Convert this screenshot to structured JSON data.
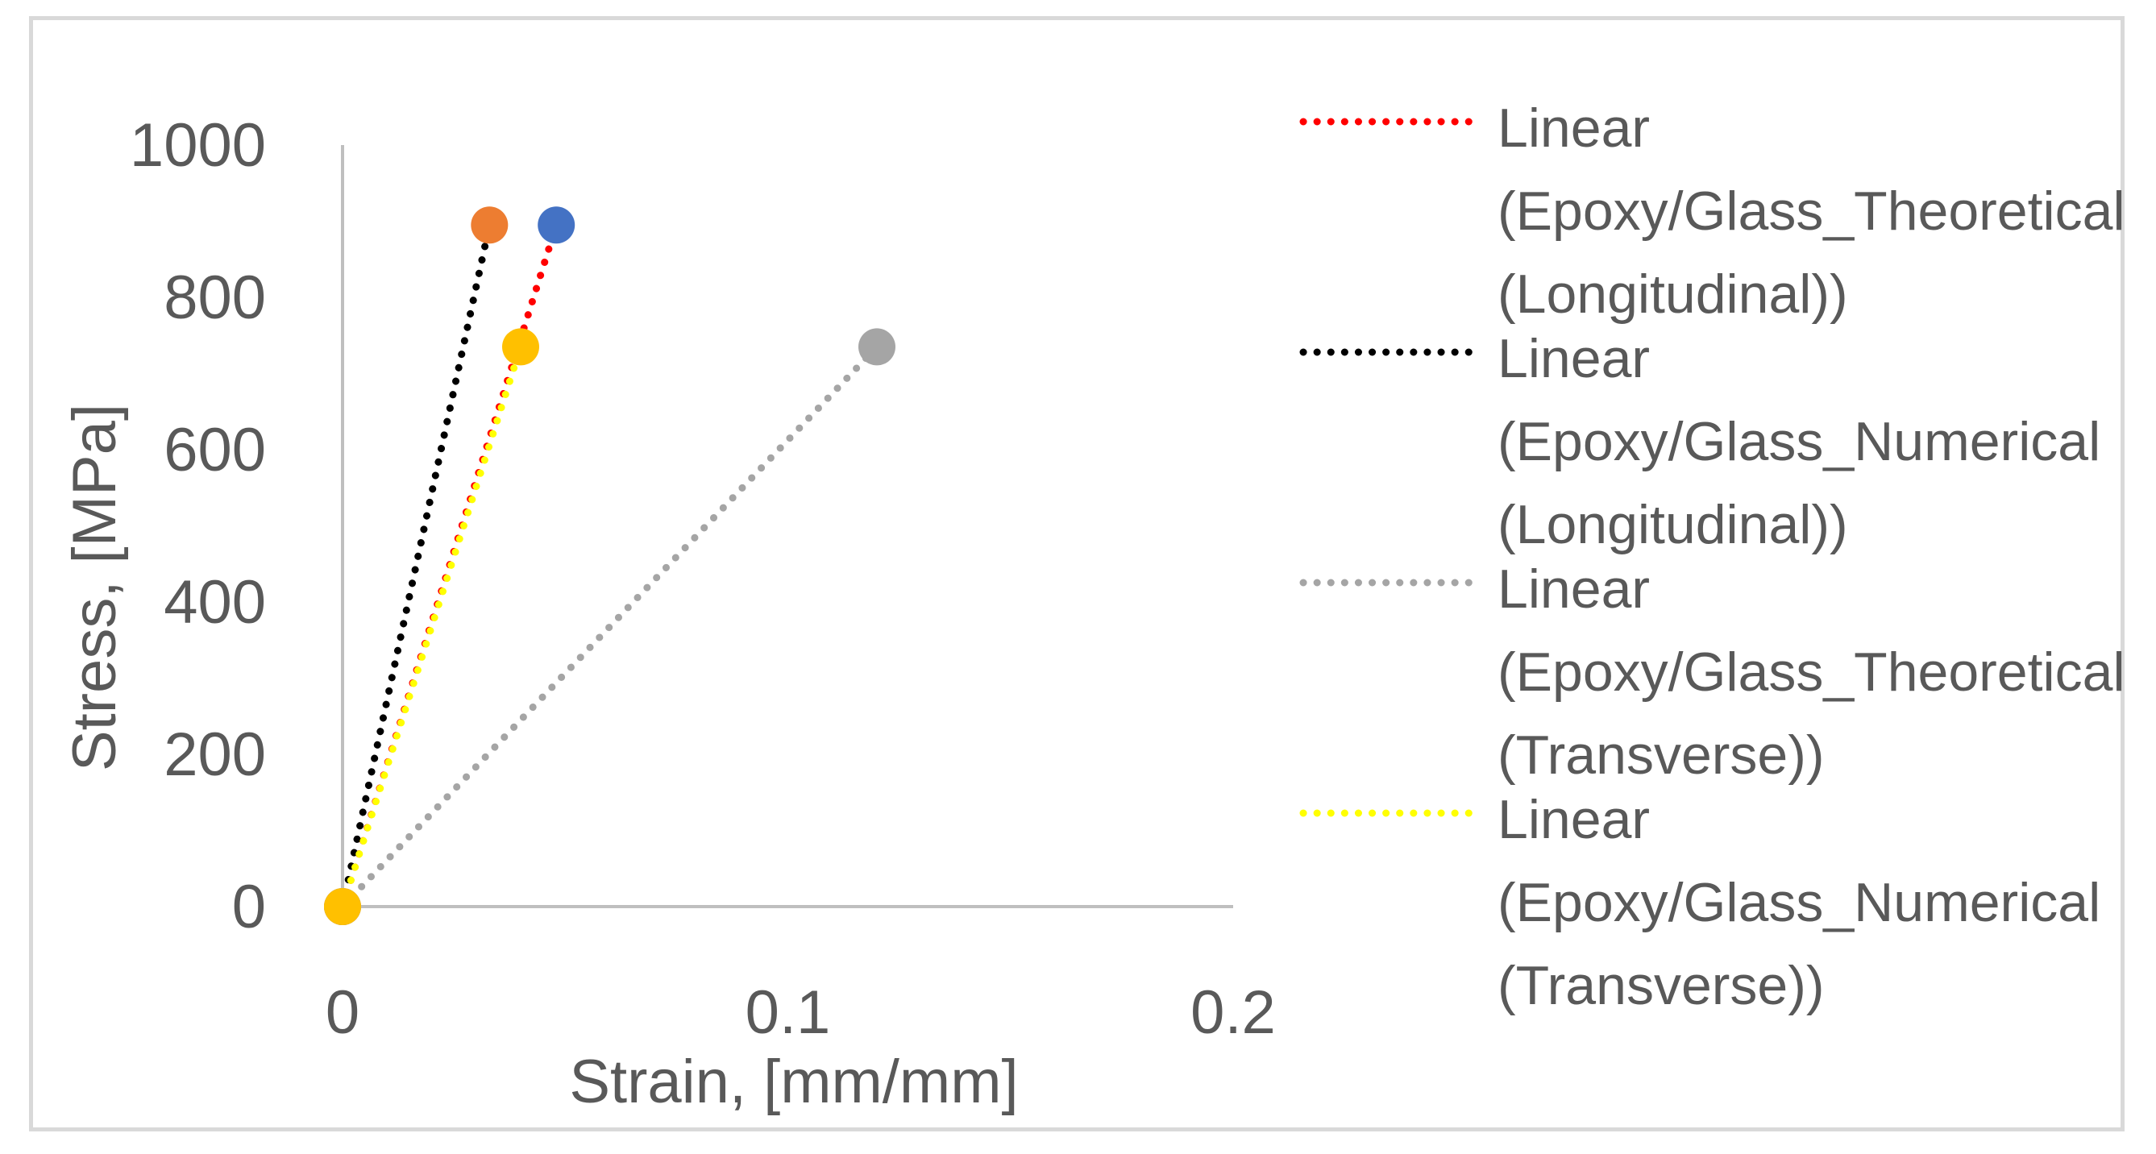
{
  "chart_data": {
    "type": "scatter",
    "title": "",
    "xlabel": "Strain, [mm/mm]",
    "ylabel": "Stress, [MPa]",
    "xlim": [
      0,
      0.2
    ],
    "ylim": [
      0,
      1000
    ],
    "xticks": [
      "0",
      "0.1",
      "0.2"
    ],
    "yticks": [
      "0",
      "200",
      "400",
      "600",
      "800",
      "1000"
    ],
    "grid": false,
    "legend_position": "right",
    "series": [
      {
        "name": "Epoxy/Glass_Theoretical (Longitudinal)",
        "marker_color": "#4472c4",
        "trend_color": "#ff0000",
        "points": [
          {
            "x": 0,
            "y": 0
          },
          {
            "x": 0.048,
            "y": 895
          }
        ]
      },
      {
        "name": "Epoxy/Glass_Numerical (Longitudinal)",
        "marker_color": "#ed7d31",
        "trend_color": "#000000",
        "points": [
          {
            "x": 0,
            "y": 0
          },
          {
            "x": 0.033,
            "y": 895
          }
        ]
      },
      {
        "name": "Epoxy/Glass_Theoretical (Transverse)",
        "marker_color": "#a5a5a5",
        "trend_color": "#a5a5a5",
        "points": [
          {
            "x": 0,
            "y": 0
          },
          {
            "x": 0.12,
            "y": 735
          }
        ]
      },
      {
        "name": "Epoxy/Glass_Numerical (Transverse)",
        "marker_color": "#ffc000",
        "trend_color": "#ffff00",
        "points": [
          {
            "x": 0,
            "y": 0
          },
          {
            "x": 0.04,
            "y": 735
          }
        ]
      }
    ],
    "legend": [
      {
        "label": "Linear (Epoxy/Glass_Theoretical (Longitudinal))",
        "color": "#ff0000"
      },
      {
        "label": "Linear (Epoxy/Glass_Numerical (Longitudinal))",
        "color": "#000000"
      },
      {
        "label": "Linear (Epoxy/Glass_Theoretical (Transverse))",
        "color": "#a5a5a5"
      },
      {
        "label": "Linear (Epoxy/Glass_Numerical (Transverse))",
        "color": "#ffff00"
      }
    ]
  }
}
